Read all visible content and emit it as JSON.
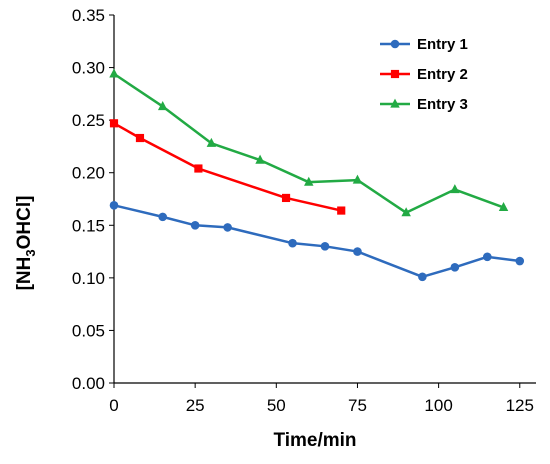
{
  "chart_data": {
    "type": "line",
    "title": "",
    "xlabel": "Time/min",
    "ylabel": "[NH3OHCl]",
    "ylabel_parts": {
      "pre": "[NH",
      "sub": "3",
      "post": "OHCl]"
    },
    "xlim": [
      0,
      130
    ],
    "ylim": [
      0,
      0.35
    ],
    "xticks": [
      0,
      25,
      50,
      75,
      100,
      125
    ],
    "yticks": [
      0.0,
      0.05,
      0.1,
      0.15,
      0.2,
      0.25,
      0.3,
      0.35
    ],
    "ytick_labels": [
      "0.00",
      "0.05",
      "0.10",
      "0.15",
      "0.20",
      "0.25",
      "0.30",
      "0.35"
    ],
    "xtick_labels": [
      "0",
      "25",
      "50",
      "75",
      "100",
      "125"
    ],
    "grid": false,
    "legend_position": "top-right",
    "series": [
      {
        "name": "Entry 1",
        "color": "#2e6bbd",
        "marker": "circle",
        "x": [
          0,
          15,
          25,
          35,
          55,
          65,
          75,
          95,
          105,
          115,
          125
        ],
        "y": [
          0.169,
          0.158,
          0.15,
          0.148,
          0.133,
          0.13,
          0.125,
          0.101,
          0.11,
          0.12,
          0.116
        ]
      },
      {
        "name": "Entry 2",
        "color": "#ff0000",
        "marker": "square",
        "x": [
          0,
          8,
          26,
          53,
          70
        ],
        "y": [
          0.247,
          0.233,
          0.204,
          0.176,
          0.164
        ]
      },
      {
        "name": "Entry 3",
        "color": "#22aa44",
        "marker": "triangle",
        "x": [
          0,
          15,
          30,
          45,
          60,
          75,
          90,
          105,
          120
        ],
        "y": [
          0.294,
          0.263,
          0.228,
          0.212,
          0.191,
          0.193,
          0.162,
          0.184,
          0.167
        ]
      }
    ]
  }
}
